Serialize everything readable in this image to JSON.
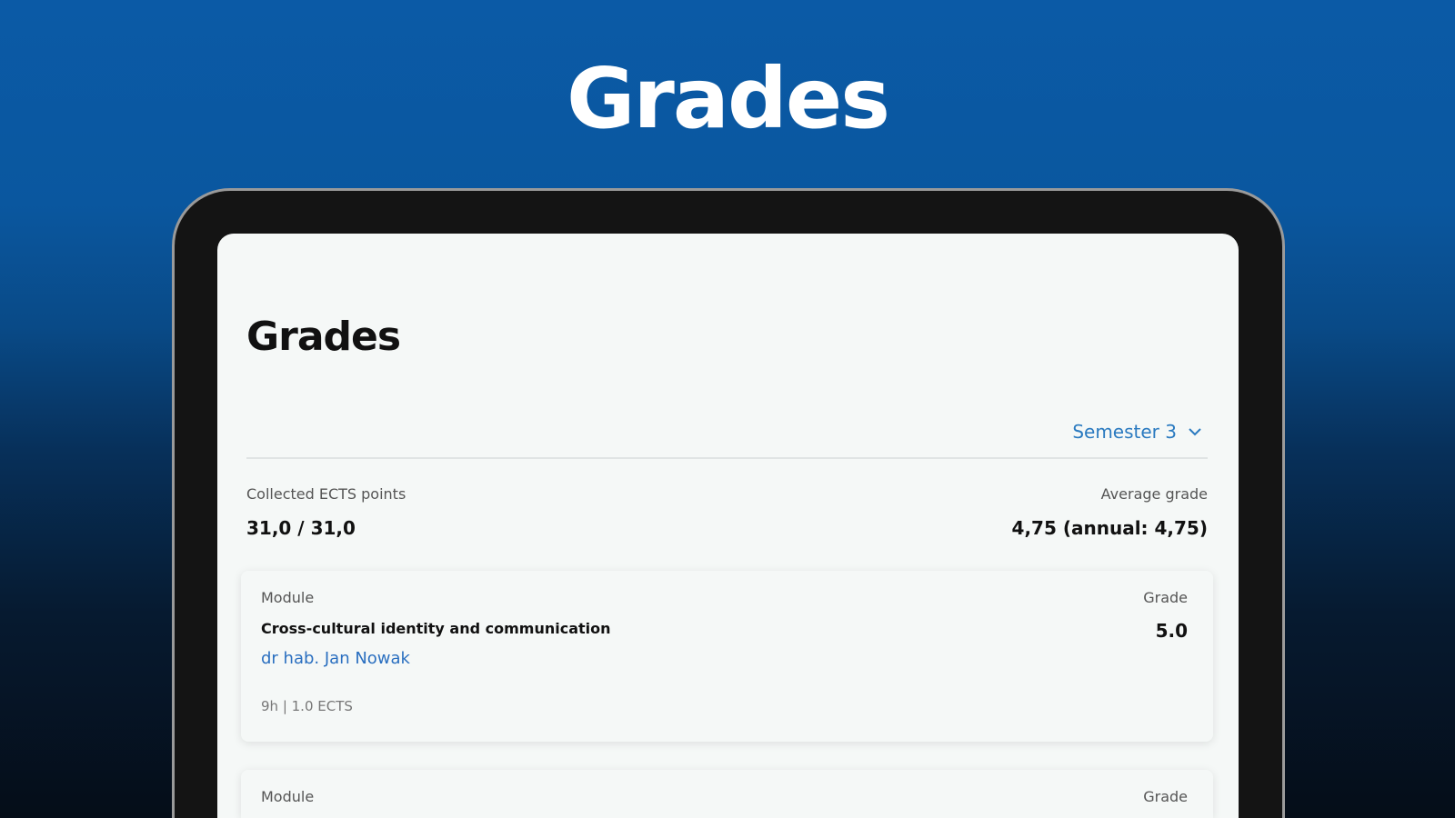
{
  "hero_title": "Grades",
  "page": {
    "title": "Grades",
    "semester": "Semester 3",
    "ects_label": "Collected ECTS points",
    "ects_value": "31,0 / 31,0",
    "avg_label": "Average grade",
    "avg_value": "4,75 (annual: 4,75)"
  },
  "modules": [
    {
      "module_label": "Module",
      "grade_label": "Grade",
      "name": "Cross-cultural identity and communication",
      "grade": "5.0",
      "teacher": "dr hab. Jan Nowak",
      "meta": "9h | 1.0 ECTS"
    },
    {
      "module_label": "Module",
      "grade_label": "Grade"
    }
  ],
  "colors": {
    "accent": "#2a7ac0",
    "background_top": "#0b5aa6"
  }
}
